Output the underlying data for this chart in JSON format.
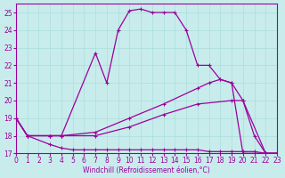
{
  "xlabel": "Windchill (Refroidissement éolien,°C)",
  "background_color": "#c8ecec",
  "line_color": "#9b009b",
  "grid_color": "#aadddd",
  "xlim": [
    0,
    23
  ],
  "ylim": [
    17,
    25.5
  ],
  "yticks": [
    17,
    18,
    19,
    20,
    21,
    22,
    23,
    24,
    25
  ],
  "xticks": [
    0,
    1,
    2,
    3,
    4,
    5,
    6,
    7,
    8,
    9,
    10,
    11,
    12,
    13,
    14,
    15,
    16,
    17,
    18,
    19,
    20,
    21,
    22,
    23
  ],
  "series": {
    "peak": {
      "x": [
        0,
        1,
        3,
        4,
        7,
        8,
        9,
        10,
        11,
        12,
        13,
        14,
        15,
        16,
        17,
        18,
        19,
        20,
        21,
        22,
        23
      ],
      "y": [
        19,
        18,
        18,
        18,
        22.7,
        21,
        24,
        25.1,
        25.2,
        25,
        25,
        25,
        24,
        22,
        22,
        21.2,
        21,
        20,
        18,
        17,
        17
      ]
    },
    "diag_upper": {
      "x": [
        0,
        1,
        3,
        4,
        7,
        10,
        13,
        16,
        17,
        18,
        19,
        20,
        21,
        22,
        23
      ],
      "y": [
        19,
        18,
        18,
        18,
        18.2,
        19,
        19.8,
        20.7,
        21,
        21.2,
        21,
        17,
        17,
        17,
        17
      ]
    },
    "diag_lower": {
      "x": [
        0,
        1,
        3,
        4,
        7,
        10,
        13,
        16,
        19,
        20,
        22,
        23
      ],
      "y": [
        19,
        18,
        18,
        18,
        18,
        18.5,
        19.2,
        19.8,
        20,
        20,
        17,
        17
      ]
    },
    "flat_bottom": {
      "x": [
        0,
        1,
        3,
        4,
        5,
        6,
        7,
        8,
        9,
        10,
        11,
        12,
        13,
        14,
        15,
        16,
        17,
        18,
        19,
        20,
        21,
        22,
        23
      ],
      "y": [
        19,
        18,
        17.5,
        17.3,
        17.2,
        17.2,
        17.2,
        17.2,
        17.2,
        17.2,
        17.2,
        17.2,
        17.2,
        17.2,
        17.2,
        17.2,
        17.1,
        17.1,
        17.1,
        17.1,
        17.1,
        17,
        17
      ]
    }
  }
}
